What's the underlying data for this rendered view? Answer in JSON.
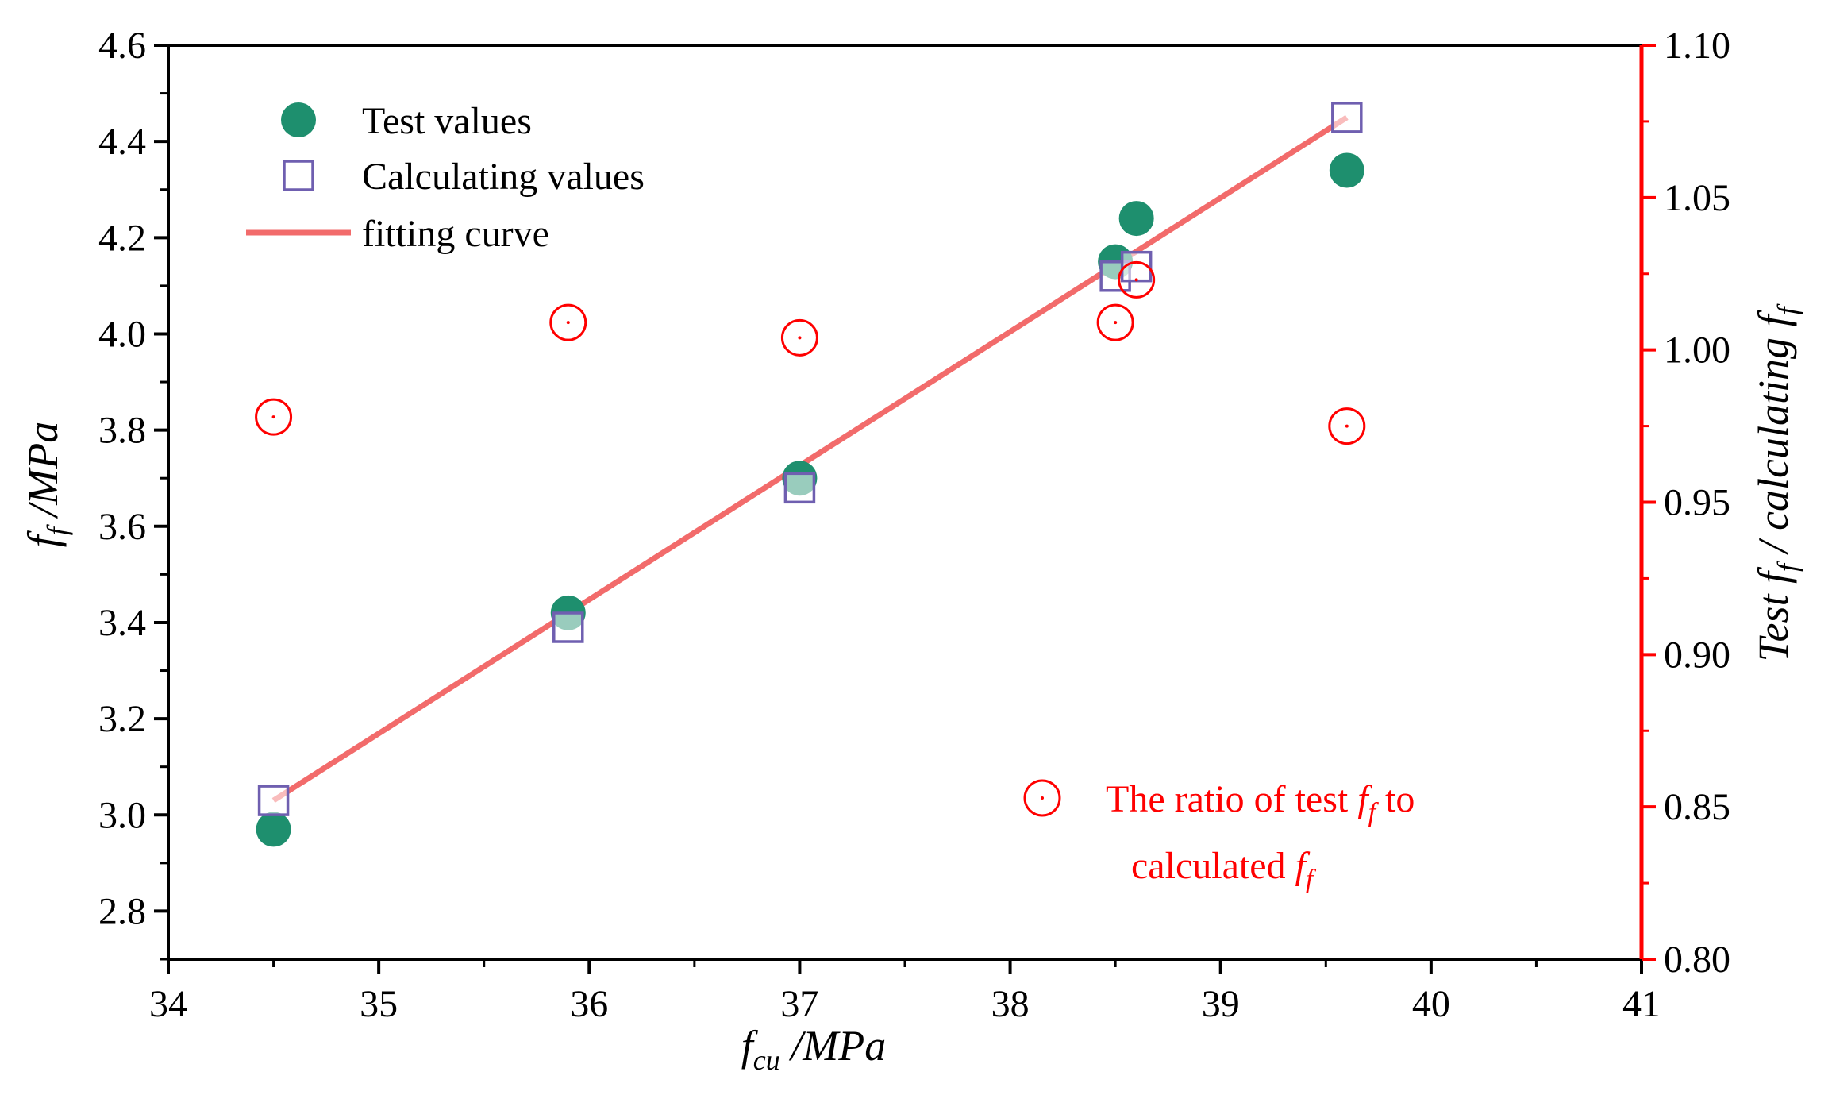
{
  "chart_data": {
    "type": "scatter",
    "x_axis": {
      "label_main": "f",
      "label_sub": "cu",
      "label_unit": " /MPa",
      "lim": [
        34,
        41
      ],
      "ticks": [
        34,
        35,
        36,
        37,
        38,
        39,
        40,
        41
      ],
      "tick_labels": [
        "34",
        "35",
        "36",
        "37",
        "38",
        "39",
        "40",
        "41"
      ]
    },
    "y_left": {
      "label_main": "f",
      "label_sub": "f",
      "label_unit": " /MPa",
      "lim": [
        2.7,
        4.6
      ],
      "ticks": [
        2.8,
        3.0,
        3.2,
        3.4,
        3.6,
        3.8,
        4.0,
        4.2,
        4.4,
        4.6
      ],
      "tick_labels": [
        "2.8",
        "3.0",
        "3.2",
        "3.4",
        "3.6",
        "3.8",
        "4.0",
        "4.2",
        "4.4",
        "4.6"
      ]
    },
    "y_right": {
      "label_prefix": "Test ",
      "label_mid": " / calculating ",
      "label_sym": "f",
      "label_sub": "f",
      "lim": [
        0.8,
        1.1
      ],
      "ticks": [
        0.8,
        0.85,
        0.9,
        0.95,
        1.0,
        1.05,
        1.1
      ],
      "tick_labels": [
        "0.80",
        "0.85",
        "0.90",
        "0.95",
        "1.00",
        "1.05",
        "1.10"
      ],
      "color": "#ff0000"
    },
    "series": [
      {
        "name": "Test values",
        "marker": "filled-circle",
        "color": "#1e8f6e",
        "axis": "left",
        "x": [
          34.5,
          35.9,
          37.0,
          38.5,
          38.6,
          39.6
        ],
        "y": [
          2.97,
          3.42,
          3.7,
          4.15,
          4.24,
          4.34
        ]
      },
      {
        "name": "Calculating values",
        "marker": "open-square",
        "color": "#6f5fb0",
        "axis": "left",
        "x": [
          34.5,
          35.9,
          37.0,
          38.5,
          38.6,
          39.6
        ],
        "y": [
          3.03,
          3.39,
          3.68,
          4.12,
          4.14,
          4.45
        ]
      },
      {
        "name": "fitting curve",
        "marker": "line",
        "color": "#f26b6b",
        "axis": "left",
        "x": [
          34.5,
          39.6
        ],
        "y": [
          3.03,
          4.45
        ]
      },
      {
        "name": "The ratio of test f_f to calculated f_f",
        "marker": "open-circle",
        "color": "#ff0000",
        "axis": "right",
        "x": [
          34.5,
          35.9,
          37.0,
          38.5,
          38.6,
          39.6
        ],
        "y": [
          0.978,
          1.009,
          1.004,
          1.009,
          1.023,
          0.975
        ]
      }
    ],
    "legend": {
      "position": "top-left",
      "items": [
        "Test values",
        "Calculating values",
        "fitting curve"
      ]
    },
    "ratio_annotation": {
      "line1_prefix": "The ratio of test ",
      "sym": "f",
      "sub": "f",
      "line1_suffix": " to",
      "line2_prefix": "calculated "
    }
  }
}
